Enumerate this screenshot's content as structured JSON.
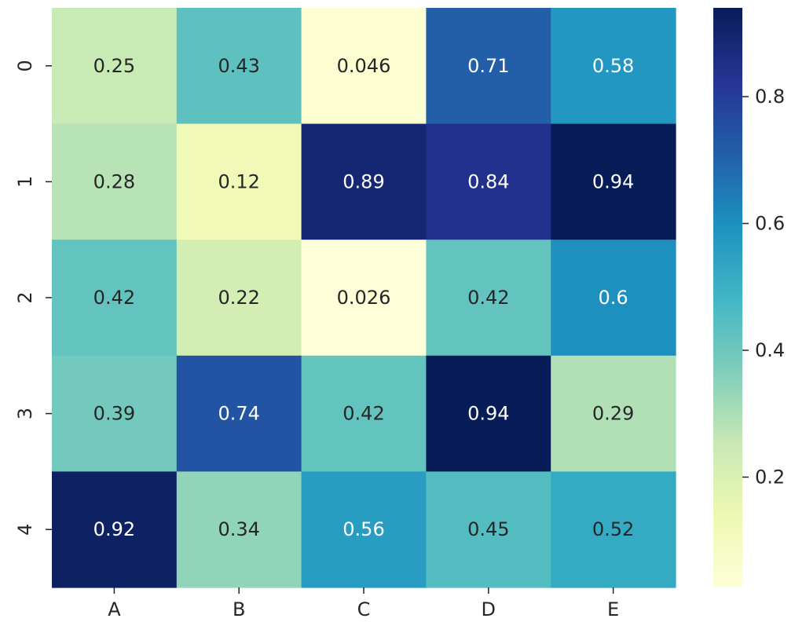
{
  "chart_data": {
    "type": "heatmap",
    "title": "",
    "xlabel": "",
    "ylabel": "",
    "columns": [
      "A",
      "B",
      "C",
      "D",
      "E"
    ],
    "rows": [
      "0",
      "1",
      "2",
      "3",
      "4"
    ],
    "values": [
      [
        0.25,
        0.43,
        0.046,
        0.71,
        0.58
      ],
      [
        0.28,
        0.12,
        0.89,
        0.84,
        0.94
      ],
      [
        0.42,
        0.22,
        0.026,
        0.42,
        0.6
      ],
      [
        0.39,
        0.74,
        0.42,
        0.94,
        0.29
      ],
      [
        0.92,
        0.34,
        0.56,
        0.45,
        0.52
      ]
    ],
    "colormap": "YlGnBu",
    "colorbar": {
      "range": [
        0.026,
        0.94
      ],
      "ticks": [
        0.2,
        0.4,
        0.6,
        0.8
      ],
      "tick_labels": [
        "0.2",
        "0.4",
        "0.6",
        "0.8"
      ],
      "placement": "right"
    },
    "annotations": true,
    "grid": false
  }
}
